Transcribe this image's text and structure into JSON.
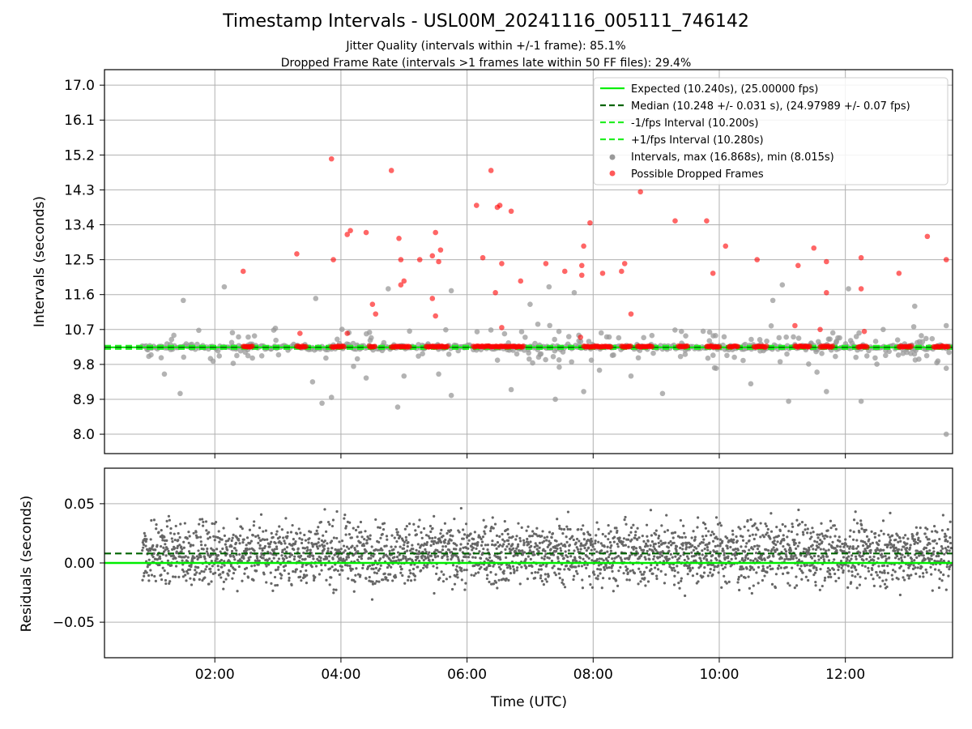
{
  "figure": {
    "title": "Timestamp Intervals - USL00M_20241116_005111_746142",
    "subtitle1": "Jitter Quality (intervals within +/-1 frame): 85.1%",
    "subtitle2": "Dropped Frame Rate (intervals >1 frames late within 50 FF files): 29.4%"
  },
  "colors": {
    "expected": "#00ee00",
    "median": "#006400",
    "interval": "#22ee22",
    "points": "#999999",
    "dropped": "#ff0000",
    "residuals": "#666666",
    "grid": "#b0b0b0"
  },
  "chart_data": [
    {
      "type": "scatter",
      "ylabel": "Intervals (seconds)",
      "x_range_hours": [
        0.25,
        13.7
      ],
      "ylim": [
        7.5,
        17.4
      ],
      "yticks": [
        "17.0",
        "16.1",
        "15.2",
        "14.3",
        "13.4",
        "12.5",
        "11.6",
        "10.7",
        "9.8",
        "8.9",
        "8.0"
      ],
      "xticks": [
        "02:00",
        "04:00",
        "06:00",
        "08:00",
        "10:00",
        "12:00"
      ],
      "grid": true,
      "legend_placement": "top-right",
      "lines": [
        {
          "name": "Expected (10.240s), (25.00000 fps)",
          "y": 10.24,
          "style": "solid"
        },
        {
          "name": "Median (10.248 +/- 0.031 s), (24.97989 +/- 0.07 fps)",
          "y": 10.248,
          "style": "dashed"
        },
        {
          "name": "-1/fps Interval (10.200s)",
          "y": 10.2,
          "style": "dashed"
        },
        {
          "name": "+1/fps Interval (10.280s)",
          "y": 10.28,
          "style": "dashed"
        }
      ],
      "scatter_legend": [
        {
          "name": "Intervals, max (16.868s), min (8.015s)"
        },
        {
          "name": "Possible Dropped Frames"
        }
      ],
      "outliers_gray": [
        [
          1.35,
          10.55
        ],
        [
          1.5,
          11.45
        ],
        [
          1.45,
          9.05
        ],
        [
          1.2,
          9.55
        ],
        [
          2.15,
          11.8
        ],
        [
          3.6,
          11.5
        ],
        [
          3.55,
          9.35
        ],
        [
          3.7,
          8.8
        ],
        [
          3.85,
          8.95
        ],
        [
          4.2,
          9.75
        ],
        [
          4.4,
          9.45
        ],
        [
          4.75,
          11.75
        ],
        [
          4.9,
          8.7
        ],
        [
          5.0,
          9.5
        ],
        [
          5.55,
          9.55
        ],
        [
          5.75,
          11.7
        ],
        [
          5.75,
          9.0
        ],
        [
          6.7,
          9.15
        ],
        [
          7.0,
          11.35
        ],
        [
          7.3,
          11.8
        ],
        [
          7.4,
          8.9
        ],
        [
          7.7,
          11.65
        ],
        [
          7.85,
          9.1
        ],
        [
          8.1,
          9.65
        ],
        [
          8.6,
          9.5
        ],
        [
          9.1,
          9.05
        ],
        [
          9.4,
          10.65
        ],
        [
          9.95,
          9.7
        ],
        [
          10.5,
          9.3
        ],
        [
          10.85,
          11.45
        ],
        [
          11.0,
          11.85
        ],
        [
          11.1,
          8.85
        ],
        [
          11.55,
          9.6
        ],
        [
          11.7,
          9.1
        ],
        [
          12.05,
          11.75
        ],
        [
          12.25,
          8.85
        ],
        [
          12.6,
          10.7
        ],
        [
          13.1,
          11.3
        ],
        [
          13.6,
          10.8
        ],
        [
          13.6,
          9.7
        ],
        [
          13.6,
          8.0
        ]
      ],
      "dropped_frames": [
        [
          2.45,
          12.2
        ],
        [
          3.3,
          12.65
        ],
        [
          3.85,
          15.1
        ],
        [
          3.88,
          12.5
        ],
        [
          4.1,
          13.15
        ],
        [
          4.15,
          13.25
        ],
        [
          4.4,
          13.2
        ],
        [
          4.5,
          11.35
        ],
        [
          4.8,
          14.8
        ],
        [
          4.92,
          13.05
        ],
        [
          4.95,
          12.5
        ],
        [
          5.0,
          11.95
        ],
        [
          4.95,
          11.85
        ],
        [
          5.25,
          12.5
        ],
        [
          5.45,
          12.6
        ],
        [
          5.5,
          13.2
        ],
        [
          5.55,
          12.45
        ],
        [
          5.58,
          12.75
        ],
        [
          5.45,
          11.5
        ],
        [
          6.15,
          13.9
        ],
        [
          6.25,
          12.55
        ],
        [
          6.38,
          14.8
        ],
        [
          6.48,
          13.85
        ],
        [
          6.52,
          13.9
        ],
        [
          6.55,
          12.4
        ],
        [
          6.45,
          11.65
        ],
        [
          6.7,
          13.75
        ],
        [
          6.85,
          11.95
        ],
        [
          7.25,
          12.4
        ],
        [
          7.55,
          12.2
        ],
        [
          7.95,
          13.45
        ],
        [
          7.85,
          12.85
        ],
        [
          7.82,
          12.35
        ],
        [
          7.82,
          12.1
        ],
        [
          8.15,
          12.15
        ],
        [
          8.45,
          12.2
        ],
        [
          8.5,
          12.4
        ],
        [
          8.75,
          14.25
        ],
        [
          8.6,
          11.1
        ],
        [
          9.3,
          13.5
        ],
        [
          9.8,
          13.5
        ],
        [
          9.9,
          12.15
        ],
        [
          10.1,
          12.85
        ],
        [
          10.6,
          12.5
        ],
        [
          11.25,
          12.35
        ],
        [
          11.5,
          12.8
        ],
        [
          11.7,
          12.45
        ],
        [
          11.7,
          11.65
        ],
        [
          12.25,
          12.55
        ],
        [
          12.25,
          11.75
        ],
        [
          12.85,
          12.15
        ],
        [
          13.3,
          13.1
        ],
        [
          13.6,
          12.5
        ],
        [
          4.1,
          10.6
        ],
        [
          4.55,
          11.1
        ],
        [
          5.5,
          11.05
        ],
        [
          6.55,
          10.75
        ],
        [
          7.8,
          10.5
        ],
        [
          11.2,
          10.8
        ],
        [
          11.6,
          10.7
        ],
        [
          12.3,
          10.65
        ],
        [
          3.35,
          10.6
        ]
      ]
    },
    {
      "type": "scatter",
      "xlabel": "Time (UTC)",
      "ylabel": "Residuals (seconds)",
      "x_range_hours": [
        0.25,
        13.7
      ],
      "ylim": [
        -0.08,
        0.08
      ],
      "yticks": [
        "0.05",
        "0.00",
        "−0.05"
      ],
      "xticks": [
        "02:00",
        "04:00",
        "06:00",
        "08:00",
        "10:00",
        "12:00"
      ],
      "grid": true,
      "lines": [
        {
          "name": "Expected",
          "y": 0.0,
          "style": "solid"
        },
        {
          "name": "Median",
          "y": 0.008,
          "style": "dashed"
        }
      ]
    }
  ]
}
